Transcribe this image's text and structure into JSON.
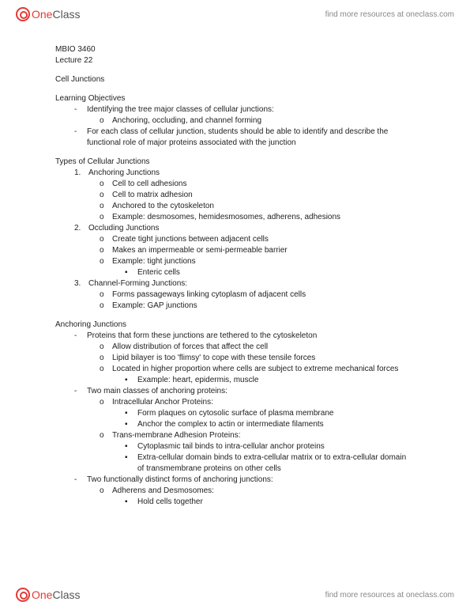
{
  "brand": {
    "one": "One",
    "class": "Class",
    "tagline": "find more resources at oneclass.com"
  },
  "meta": {
    "course": "MBIO 3460",
    "lecture": "Lecture 22",
    "topic": "Cell Junctions"
  },
  "lo": {
    "heading": "Learning Objectives",
    "i1": "Identifying the tree major classes of cellular junctions:",
    "i1a": "Anchoring, occluding, and channel forming",
    "i2": "For each class of cellular junction, students should be able to identify and describe the functional role of major proteins associated with the junction"
  },
  "types": {
    "heading": "Types of Cellular Junctions",
    "n1": "1.",
    "t1": "Anchoring Junctions",
    "t1a": "Cell to cell adhesions",
    "t1b": "Cell to matrix adhesion",
    "t1c": "Anchored to the cytoskeleton",
    "t1d": "Example: desmosomes, hemidesmosomes, adherens, adhesions",
    "n2": "2.",
    "t2": "Occluding Junctions",
    "t2a": "Create tight junctions between adjacent cells",
    "t2b": "Makes an impermeable or semi-permeable barrier",
    "t2c": "Example: tight junctions",
    "t2c1": "Enteric cells",
    "n3": "3.",
    "t3": "Channel-Forming Junctions:",
    "t3a": "Forms passageways linking cytoplasm of adjacent cells",
    "t3b": "Example: GAP junctions"
  },
  "anch": {
    "heading": "Anchoring Junctions",
    "p1": "Proteins that form these junctions are tethered to the cytoskeleton",
    "p1a": "Allow distribution of forces that affect the cell",
    "p1b": "Lipid bilayer is too 'flimsy' to cope with these tensile forces",
    "p1c": "Located in higher proportion where cells are subject to extreme mechanical forces",
    "p1c1": "Example: heart, epidermis, muscle",
    "p2": "Two main classes of anchoring proteins:",
    "p2a": "Intracellular Anchor Proteins:",
    "p2a1": "Form plaques on cytosolic surface of plasma membrane",
    "p2a2": "Anchor the complex to actin or intermediate filaments",
    "p2b": "Trans-membrane Adhesion Proteins:",
    "p2b1": "Cytoplasmic tail binds to intra-cellular anchor proteins",
    "p2b2": "Extra-cellular domain binds to extra-cellular matrix or to extra-cellular domain of transmembrane proteins on other cells",
    "p3": "Two functionally distinct forms of anchoring junctions:",
    "p3a": "Adherens and Desmosomes:",
    "p3a1": "Hold cells together"
  },
  "glyph": {
    "dash": "-",
    "o": "o",
    "sq": "▪"
  }
}
